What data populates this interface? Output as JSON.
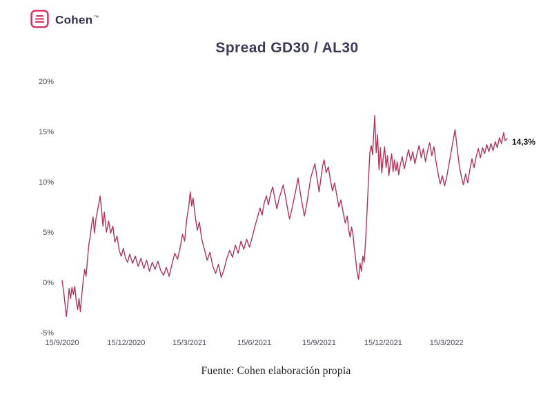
{
  "header": {
    "brand": "Cohen",
    "brand_mark": "™"
  },
  "colors": {
    "line": "#b2335a",
    "logo": "#d42a5c",
    "title_text": "#3b3b57",
    "tick_text": "#45455c",
    "annotation_text": "#141414"
  },
  "footer": {
    "source": "Fuente: Cohen elaboración propia"
  },
  "chart_data": {
    "type": "line",
    "title": "Spread GD30 / AL30",
    "xlabel": "",
    "ylabel": "",
    "grid": false,
    "legend": false,
    "xlim": [
      0,
      632
    ],
    "ylim": [
      -5,
      20
    ],
    "x_unit": "days since 15/9/2020",
    "y_unit": "percent",
    "y_ticks": [
      20,
      15,
      10,
      5,
      0,
      -5
    ],
    "y_tick_labels": [
      "20%",
      "15%",
      "10%",
      "5%",
      "0%",
      "-5%"
    ],
    "x_ticks": [
      {
        "x": 0,
        "label": "15/9/2020"
      },
      {
        "x": 91,
        "label": "15/12/2020"
      },
      {
        "x": 181,
        "label": "15/3/2021"
      },
      {
        "x": 273,
        "label": "15/6/2021"
      },
      {
        "x": 365,
        "label": "15/9/2021"
      },
      {
        "x": 456,
        "label": "15/12/2021"
      },
      {
        "x": 546,
        "label": "15/3/2022"
      }
    ],
    "annotation": {
      "text": "14,3%",
      "x": 632,
      "value": 14.3
    },
    "series": [
      {
        "name": "Spread GD30 / AL30",
        "color": "#b2335a",
        "points": [
          [
            0,
            0.2
          ],
          [
            3,
            -1.4
          ],
          [
            6,
            -3.4
          ],
          [
            8,
            -2.2
          ],
          [
            10,
            -0.6
          ],
          [
            12,
            -1.6
          ],
          [
            14,
            -0.5
          ],
          [
            16,
            -1.2
          ],
          [
            18,
            -0.4
          ],
          [
            20,
            -1.8
          ],
          [
            22,
            -2.7
          ],
          [
            24,
            -1.6
          ],
          [
            26,
            -2.9
          ],
          [
            28,
            -1.2
          ],
          [
            30,
            0.2
          ],
          [
            32,
            1.3
          ],
          [
            34,
            0.6
          ],
          [
            36,
            2.2
          ],
          [
            38,
            3.8
          ],
          [
            40,
            4.6
          ],
          [
            42,
            5.8
          ],
          [
            44,
            6.5
          ],
          [
            46,
            4.9
          ],
          [
            48,
            6.3
          ],
          [
            50,
            7.0
          ],
          [
            52,
            7.8
          ],
          [
            54,
            8.6
          ],
          [
            56,
            7.2
          ],
          [
            58,
            5.6
          ],
          [
            60,
            7.0
          ],
          [
            63,
            5.0
          ],
          [
            66,
            6.1
          ],
          [
            69,
            4.9
          ],
          [
            72,
            5.6
          ],
          [
            75,
            4.0
          ],
          [
            78,
            4.6
          ],
          [
            81,
            3.2
          ],
          [
            84,
            2.6
          ],
          [
            87,
            3.4
          ],
          [
            90,
            2.4
          ],
          [
            93,
            2.0
          ],
          [
            96,
            2.8
          ],
          [
            100,
            1.9
          ],
          [
            104,
            2.6
          ],
          [
            108,
            1.6
          ],
          [
            112,
            2.4
          ],
          [
            116,
            1.4
          ],
          [
            120,
            2.2
          ],
          [
            124,
            1.1
          ],
          [
            128,
            2.0
          ],
          [
            132,
            1.3
          ],
          [
            136,
            2.1
          ],
          [
            140,
            1.2
          ],
          [
            144,
            0.7
          ],
          [
            148,
            1.5
          ],
          [
            152,
            0.6
          ],
          [
            156,
            1.8
          ],
          [
            160,
            2.9
          ],
          [
            164,
            2.3
          ],
          [
            168,
            3.6
          ],
          [
            171,
            4.8
          ],
          [
            174,
            4.1
          ],
          [
            177,
            6.3
          ],
          [
            180,
            7.6
          ],
          [
            182,
            9.0
          ],
          [
            184,
            7.6
          ],
          [
            186,
            8.4
          ],
          [
            189,
            6.6
          ],
          [
            192,
            5.2
          ],
          [
            195,
            6.0
          ],
          [
            198,
            4.4
          ],
          [
            202,
            3.3
          ],
          [
            206,
            2.2
          ],
          [
            210,
            3.0
          ],
          [
            214,
            1.6
          ],
          [
            218,
            0.9
          ],
          [
            222,
            1.8
          ],
          [
            226,
            0.5
          ],
          [
            230,
            1.3
          ],
          [
            234,
            2.4
          ],
          [
            238,
            3.2
          ],
          [
            242,
            2.5
          ],
          [
            246,
            3.7
          ],
          [
            250,
            2.9
          ],
          [
            254,
            4.1
          ],
          [
            258,
            3.3
          ],
          [
            262,
            4.3
          ],
          [
            266,
            3.5
          ],
          [
            270,
            4.5
          ],
          [
            274,
            5.6
          ],
          [
            278,
            6.6
          ],
          [
            281,
            7.4
          ],
          [
            284,
            6.7
          ],
          [
            287,
            7.9
          ],
          [
            290,
            8.6
          ],
          [
            293,
            7.7
          ],
          [
            296,
            8.8
          ],
          [
            299,
            9.5
          ],
          [
            302,
            8.4
          ],
          [
            305,
            7.3
          ],
          [
            308,
            8.3
          ],
          [
            311,
            9.0
          ],
          [
            314,
            9.7
          ],
          [
            317,
            8.6
          ],
          [
            320,
            7.4
          ],
          [
            323,
            6.3
          ],
          [
            326,
            7.2
          ],
          [
            329,
            8.2
          ],
          [
            332,
            9.2
          ],
          [
            335,
            10.4
          ],
          [
            338,
            9.0
          ],
          [
            341,
            7.8
          ],
          [
            344,
            6.6
          ],
          [
            347,
            7.6
          ],
          [
            350,
            9.0
          ],
          [
            353,
            10.4
          ],
          [
            356,
            11.1
          ],
          [
            359,
            11.8
          ],
          [
            362,
            10.4
          ],
          [
            365,
            9.0
          ],
          [
            368,
            10.6
          ],
          [
            370,
            11.6
          ],
          [
            372,
            12.2
          ],
          [
            375,
            10.9
          ],
          [
            378,
            11.5
          ],
          [
            381,
            10.2
          ],
          [
            384,
            9.1
          ],
          [
            387,
            9.9
          ],
          [
            390,
            8.7
          ],
          [
            393,
            7.5
          ],
          [
            396,
            8.2
          ],
          [
            399,
            7.0
          ],
          [
            402,
            5.9
          ],
          [
            405,
            6.6
          ],
          [
            407,
            5.2
          ],
          [
            409,
            4.5
          ],
          [
            411,
            5.5
          ],
          [
            413,
            4.8
          ],
          [
            415,
            3.4
          ],
          [
            417,
            2.2
          ],
          [
            419,
            1.0
          ],
          [
            421,
            0.3
          ],
          [
            423,
            1.9
          ],
          [
            425,
            1.1
          ],
          [
            427,
            2.6
          ],
          [
            429,
            2.0
          ],
          [
            431,
            4.2
          ],
          [
            433,
            7.0
          ],
          [
            435,
            10.0
          ],
          [
            437,
            12.9
          ],
          [
            439,
            13.6
          ],
          [
            441,
            12.7
          ],
          [
            442,
            14.2
          ],
          [
            443,
            15.4
          ],
          [
            444,
            16.6
          ],
          [
            445,
            14.6
          ],
          [
            446,
            12.9
          ],
          [
            448,
            14.7
          ],
          [
            450,
            11.2
          ],
          [
            452,
            13.4
          ],
          [
            454,
            10.9
          ],
          [
            456,
            12.4
          ],
          [
            458,
            13.5
          ],
          [
            460,
            11.4
          ],
          [
            462,
            12.6
          ],
          [
            464,
            10.6
          ],
          [
            466,
            11.8
          ],
          [
            468,
            12.8
          ],
          [
            470,
            11.0
          ],
          [
            472,
            12.2
          ],
          [
            474,
            11.1
          ],
          [
            476,
            12.0
          ],
          [
            478,
            10.7
          ],
          [
            480,
            11.6
          ],
          [
            483,
            12.5
          ],
          [
            486,
            11.3
          ],
          [
            489,
            12.3
          ],
          [
            492,
            13.2
          ],
          [
            495,
            12.1
          ],
          [
            498,
            13.0
          ],
          [
            501,
            11.8
          ],
          [
            504,
            12.8
          ],
          [
            507,
            13.6
          ],
          [
            510,
            12.4
          ],
          [
            513,
            13.3
          ],
          [
            516,
            12.0
          ],
          [
            519,
            13.1
          ],
          [
            522,
            13.9
          ],
          [
            525,
            12.6
          ],
          [
            528,
            13.5
          ],
          [
            531,
            12.0
          ],
          [
            534,
            10.8
          ],
          [
            537,
            9.8
          ],
          [
            540,
            10.6
          ],
          [
            543,
            9.6
          ],
          [
            546,
            10.4
          ],
          [
            549,
            11.6
          ],
          [
            552,
            12.8
          ],
          [
            555,
            14.0
          ],
          [
            558,
            15.2
          ],
          [
            561,
            13.4
          ],
          [
            564,
            11.6
          ],
          [
            567,
            10.5
          ],
          [
            570,
            9.7
          ],
          [
            573,
            10.8
          ],
          [
            576,
            9.9
          ],
          [
            579,
            11.2
          ],
          [
            582,
            12.3
          ],
          [
            585,
            11.4
          ],
          [
            588,
            12.5
          ],
          [
            591,
            13.3
          ],
          [
            594,
            12.4
          ],
          [
            597,
            13.4
          ],
          [
            600,
            12.8
          ],
          [
            603,
            13.7
          ],
          [
            606,
            13.0
          ],
          [
            609,
            13.8
          ],
          [
            612,
            13.1
          ],
          [
            615,
            14.0
          ],
          [
            618,
            13.4
          ],
          [
            621,
            14.4
          ],
          [
            624,
            13.8
          ],
          [
            627,
            14.9
          ],
          [
            629,
            14.1
          ],
          [
            632,
            14.3
          ]
        ]
      }
    ]
  }
}
